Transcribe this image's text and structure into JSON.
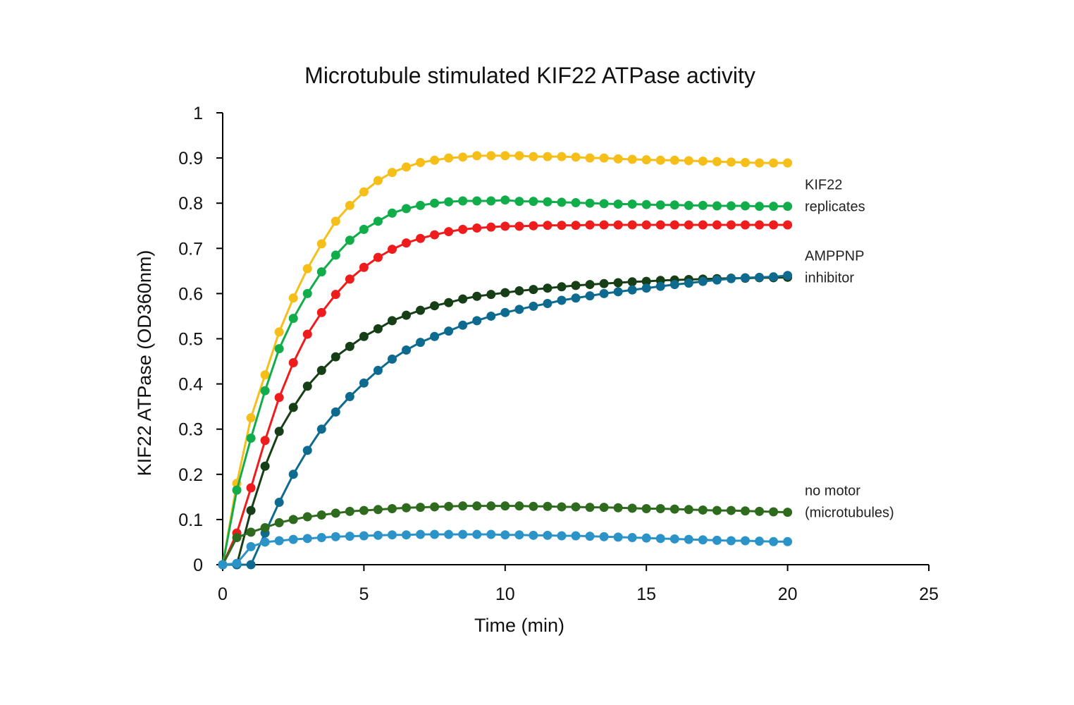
{
  "chart_data": {
    "type": "line",
    "title": "Microtubule stimulated KIF22 ATPase activity",
    "xlabel": "Time (min)",
    "ylabel": "KIF22  ATPase  (OD360nm)",
    "xlim": [
      0,
      25
    ],
    "ylim": [
      0,
      1
    ],
    "xticks": [
      "0",
      "5",
      "10",
      "15",
      "20",
      "25"
    ],
    "yticks": [
      "0",
      "0.1",
      "0.2",
      "0.3",
      "0.4",
      "0.5",
      "0.6",
      "0.7",
      "0.8",
      "0.9",
      "1"
    ],
    "grid": false,
    "x_step": 0.5,
    "x_start": 0,
    "series": [
      {
        "name": "KIF22 replicate 1",
        "color": "#F5BE18",
        "values": [
          0,
          0.18,
          0.325,
          0.42,
          0.515,
          0.59,
          0.655,
          0.71,
          0.76,
          0.795,
          0.825,
          0.85,
          0.868,
          0.88,
          0.89,
          0.895,
          0.9,
          0.902,
          0.905,
          0.905,
          0.905,
          0.905,
          0.903,
          0.903,
          0.903,
          0.902,
          0.9,
          0.9,
          0.898,
          0.897,
          0.896,
          0.895,
          0.895,
          0.894,
          0.893,
          0.892,
          0.891,
          0.89,
          0.889,
          0.889,
          0.889
        ]
      },
      {
        "name": "KIF22 replicate 2",
        "color": "#12AD4B",
        "values": [
          0,
          0.165,
          0.28,
          0.385,
          0.478,
          0.545,
          0.6,
          0.648,
          0.685,
          0.718,
          0.742,
          0.76,
          0.778,
          0.788,
          0.795,
          0.8,
          0.803,
          0.805,
          0.805,
          0.805,
          0.807,
          0.804,
          0.804,
          0.803,
          0.802,
          0.801,
          0.8,
          0.799,
          0.798,
          0.798,
          0.797,
          0.796,
          0.796,
          0.795,
          0.795,
          0.794,
          0.794,
          0.794,
          0.793,
          0.793,
          0.793
        ]
      },
      {
        "name": "KIF22 replicate 3",
        "color": "#EE1C1C",
        "values": [
          0,
          0.07,
          0.17,
          0.275,
          0.37,
          0.447,
          0.51,
          0.558,
          0.598,
          0.632,
          0.658,
          0.68,
          0.698,
          0.712,
          0.722,
          0.73,
          0.737,
          0.742,
          0.745,
          0.747,
          0.749,
          0.749,
          0.75,
          0.751,
          0.751,
          0.751,
          0.752,
          0.752,
          0.752,
          0.752,
          0.752,
          0.752,
          0.752,
          0.752,
          0.752,
          0.752,
          0.752,
          0.752,
          0.752,
          0.752,
          0.752
        ]
      },
      {
        "name": "AMPPNP inhibitor 1",
        "color": "#173F17",
        "values": [
          0,
          0,
          0.12,
          0.218,
          0.295,
          0.348,
          0.395,
          0.43,
          0.46,
          0.483,
          0.505,
          0.522,
          0.54,
          0.552,
          0.563,
          0.573,
          0.58,
          0.588,
          0.594,
          0.598,
          0.602,
          0.606,
          0.609,
          0.612,
          0.615,
          0.618,
          0.62,
          0.622,
          0.624,
          0.626,
          0.627,
          0.629,
          0.63,
          0.631,
          0.632,
          0.633,
          0.634,
          0.634,
          0.635,
          0.635,
          0.636
        ]
      },
      {
        "name": "AMPPNP inhibitor 2",
        "color": "#0E6B8F",
        "values": [
          0,
          0,
          0,
          0.07,
          0.138,
          0.2,
          0.253,
          0.3,
          0.338,
          0.372,
          0.402,
          0.43,
          0.455,
          0.475,
          0.492,
          0.505,
          0.517,
          0.53,
          0.54,
          0.55,
          0.558,
          0.565,
          0.572,
          0.578,
          0.585,
          0.59,
          0.595,
          0.6,
          0.604,
          0.608,
          0.612,
          0.616,
          0.62,
          0.623,
          0.627,
          0.63,
          0.633,
          0.635,
          0.636,
          0.637,
          0.64
        ]
      },
      {
        "name": "no motor 1",
        "color": "#2F6B1E",
        "values": [
          0,
          0.06,
          0.072,
          0.082,
          0.093,
          0.1,
          0.106,
          0.11,
          0.114,
          0.118,
          0.12,
          0.122,
          0.124,
          0.126,
          0.127,
          0.128,
          0.129,
          0.13,
          0.13,
          0.13,
          0.13,
          0.13,
          0.129,
          0.129,
          0.128,
          0.128,
          0.127,
          0.127,
          0.126,
          0.125,
          0.124,
          0.124,
          0.123,
          0.122,
          0.121,
          0.12,
          0.12,
          0.119,
          0.118,
          0.117,
          0.116
        ]
      },
      {
        "name": "no motor 2",
        "color": "#2B93C8",
        "values": [
          0,
          0.003,
          0.04,
          0.05,
          0.053,
          0.056,
          0.058,
          0.06,
          0.062,
          0.063,
          0.064,
          0.065,
          0.066,
          0.066,
          0.067,
          0.067,
          0.067,
          0.067,
          0.067,
          0.067,
          0.066,
          0.066,
          0.065,
          0.065,
          0.064,
          0.064,
          0.063,
          0.062,
          0.061,
          0.06,
          0.059,
          0.058,
          0.057,
          0.056,
          0.055,
          0.054,
          0.053,
          0.053,
          0.052,
          0.051,
          0.051
        ]
      }
    ],
    "annotations": [
      {
        "lines": [
          "KIF22",
          "replicates"
        ],
        "near_series": "KIF22 replicate 2"
      },
      {
        "lines": [
          "AMPPNP",
          "inhibitor"
        ],
        "near_series": "AMPPNP inhibitor 1"
      },
      {
        "lines": [
          "no motor",
          "(microtubules)"
        ],
        "near_series": "no motor 1"
      }
    ]
  }
}
